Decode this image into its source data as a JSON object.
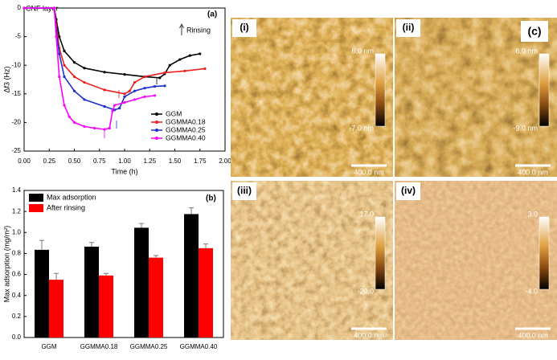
{
  "chart_data": [
    {
      "type": "line",
      "panel_label": "(a)",
      "annotations": [
        "CNF layer",
        "Rinsing"
      ],
      "x_label": "Time (h)",
      "y_label": "Δf3 (Hz)",
      "xlim": [
        0,
        2
      ],
      "xticks": [
        {
          "value": 0,
          "label": "0.00"
        },
        {
          "value": 0.25,
          "label": "0.25"
        },
        {
          "value": 0.5,
          "label": "0.50"
        },
        {
          "value": 0.75,
          "label": "0.75"
        },
        {
          "value": 1,
          "label": "1.00"
        },
        {
          "value": 1.25,
          "label": "1.25"
        },
        {
          "value": 1.5,
          "label": "1.50"
        },
        {
          "value": 1.75,
          "label": "1.75"
        },
        {
          "value": 2,
          "label": "2.00"
        }
      ],
      "ylim": [
        -25,
        0
      ],
      "yticks": [
        0,
        -5,
        -10,
        -15,
        -20,
        -25
      ],
      "series": [
        {
          "name": "GGM",
          "color": "#000000",
          "x": [
            0,
            0.3,
            0.32,
            0.35,
            0.4,
            0.5,
            0.6,
            0.8,
            1.0,
            1.2,
            1.35,
            1.4,
            1.45,
            1.55,
            1.65,
            1.75
          ],
          "values": [
            0,
            0,
            -2,
            -5,
            -7.5,
            -9.5,
            -10.5,
            -11.2,
            -11.6,
            -12,
            -12.2,
            -11.5,
            -10,
            -9,
            -8.3,
            -8
          ]
        },
        {
          "name": "GGMMA0.18",
          "color": "#e8201f",
          "x": [
            0,
            0.3,
            0.32,
            0.35,
            0.4,
            0.5,
            0.6,
            0.8,
            1.0,
            1.05,
            1.1,
            1.2,
            1.4,
            1.6,
            1.8
          ],
          "values": [
            0,
            0,
            -3,
            -7,
            -10,
            -12,
            -13,
            -14.3,
            -15,
            -14.5,
            -13,
            -12,
            -11.3,
            -11,
            -10.6
          ]
        },
        {
          "name": "GGMMA0.25",
          "color": "#2030d0",
          "x": [
            0,
            0.3,
            0.32,
            0.35,
            0.4,
            0.5,
            0.6,
            0.8,
            0.9,
            0.95,
            1.0,
            1.1,
            1.2,
            1.3,
            1.4
          ],
          "values": [
            0,
            0,
            -4,
            -8,
            -12,
            -14.5,
            -16,
            -17.2,
            -17.8,
            -17.5,
            -15.5,
            -14.5,
            -14,
            -13.7,
            -13.6
          ]
        },
        {
          "name": "GGMMA0.40",
          "color": "#ff00ff",
          "x": [
            0,
            0.3,
            0.32,
            0.35,
            0.4,
            0.45,
            0.5,
            0.6,
            0.7,
            0.8,
            0.85,
            0.88,
            0.9,
            1.0,
            1.1,
            1.2,
            1.3
          ],
          "values": [
            0,
            0,
            -5,
            -12,
            -17,
            -19,
            -20,
            -20.7,
            -21,
            -21.2,
            -21,
            -18,
            -17,
            -16.5,
            -16,
            -15.5,
            -15.3
          ]
        }
      ]
    },
    {
      "type": "bar",
      "panel_label": "(b)",
      "y_label": "Max adsorption (mg/m²)",
      "categories": [
        "GGM",
        "GGMMA0.18",
        "GGMMA0.25",
        "GGMMA0.40"
      ],
      "ylim": [
        0,
        1.4
      ],
      "yticks": [
        {
          "value": 0,
          "label": "0.0"
        },
        {
          "value": 0.2,
          "label": "0.2"
        },
        {
          "value": 0.4,
          "label": "0.4"
        },
        {
          "value": 0.6,
          "label": "0.6"
        },
        {
          "value": 0.8,
          "label": "0.8"
        },
        {
          "value": 1,
          "label": "1.0"
        },
        {
          "value": 1.2,
          "label": "1.2"
        },
        {
          "value": 1.4,
          "label": "1.4"
        }
      ],
      "series": [
        {
          "name": "Max adsorption",
          "color": "#000000",
          "values": [
            0.835,
            0.865,
            1.045,
            1.175
          ],
          "errors": [
            0.09,
            0.04,
            0.04,
            0.06
          ]
        },
        {
          "name": "After rinsing",
          "color": "#ff0000",
          "values": [
            0.55,
            0.59,
            0.76,
            0.85
          ],
          "errors": [
            0.06,
            0.02,
            0.02,
            0.04
          ]
        }
      ]
    }
  ],
  "figure_label": "(c)",
  "panels": [
    {
      "label": "(i)",
      "scale_top": "6.0 nm",
      "scale_bottom": "-7.0 nm",
      "scale_bar": "400.0 nm"
    },
    {
      "label": "(ii)",
      "scale_top": "6.0 nm",
      "scale_bottom": "-9.0 nm",
      "scale_bar": "400.0 nm"
    },
    {
      "label": "(iii)",
      "scale_top": "17.0",
      "scale_bottom": "-20.0",
      "scale_bar": "400.0 nm"
    },
    {
      "label": "(iv)",
      "scale_top": "3.0",
      "scale_bottom": "-4.0",
      "scale_bar": "400.0 nm"
    }
  ]
}
